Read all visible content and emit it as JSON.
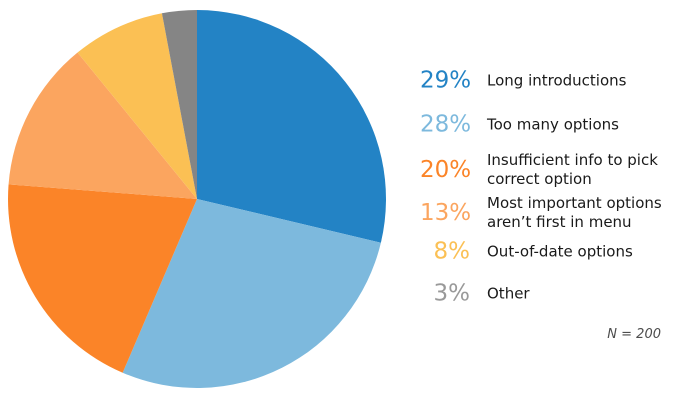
{
  "chart_data": {
    "type": "pie",
    "title": "",
    "labels": [
      "Long introductions",
      "Too many options",
      "Insufficient info to pick correct option",
      "Most important options aren’t first in menu",
      "Out-of-date options",
      "Other"
    ],
    "values": [
      29,
      28,
      20,
      13,
      8,
      3
    ],
    "unit": "%",
    "colors": [
      "#2383c5",
      "#7db9dd",
      "#fb8428",
      "#fba55f",
      "#fbc054",
      "#858585"
    ],
    "start_angle_deg": 0,
    "direction": "clockwise",
    "legend_position": "right",
    "grid": false,
    "note": "N = 200"
  },
  "legend": {
    "items": [
      {
        "pct": "29%",
        "label": "Long introductions",
        "color": "#2383c5"
      },
      {
        "pct": "28%",
        "label": "Too many options",
        "color": "#7db9dd"
      },
      {
        "pct": "20%",
        "label": "Insufficient info to pick\ncorrect option",
        "color": "#fb8428"
      },
      {
        "pct": "13%",
        "label": "Most important options\naren’t first in menu",
        "color": "#fba55f"
      },
      {
        "pct": "8%",
        "label": "Out-of-date options",
        "color": "#fbc054"
      },
      {
        "pct": "3%",
        "label": "Other",
        "color": "#999999"
      }
    ]
  },
  "footnote": "N = 200"
}
